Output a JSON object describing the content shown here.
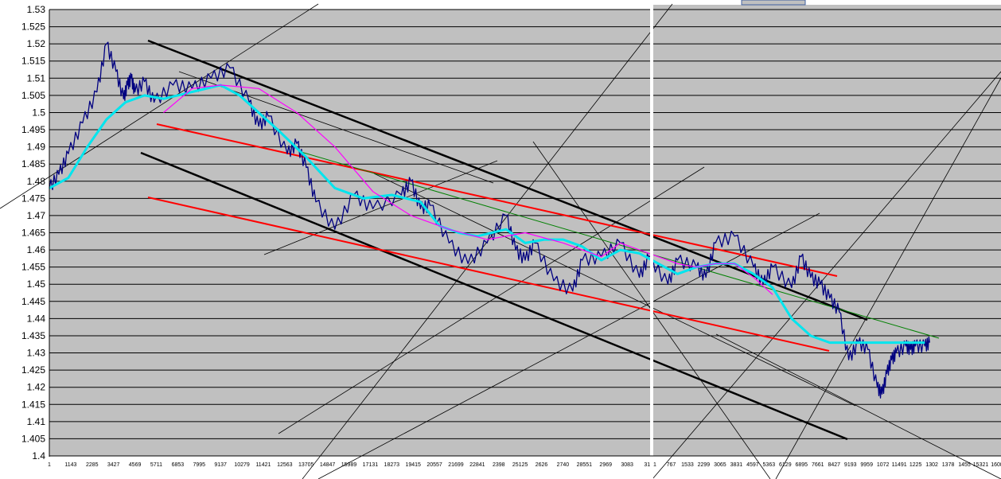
{
  "chart_data": {
    "type": "line",
    "title": "",
    "xlabel": "",
    "ylabel": "",
    "ylim": [
      1.4,
      1.53
    ],
    "y_ticks": [
      "1.4",
      "1.405",
      "1.41",
      "1.415",
      "1.42",
      "1.425",
      "1.43",
      "1.435",
      "1.44",
      "1.445",
      "1.45",
      "1.455",
      "1.46",
      "1.465",
      "1.47",
      "1.475",
      "1.48",
      "1.485",
      "1.49",
      "1.495",
      "1.5",
      "1.505",
      "1.51",
      "1.515",
      "1.52",
      "1.525",
      "1.53"
    ],
    "x_ticks_left": [
      "1",
      "1143",
      "2285",
      "3427",
      "4569",
      "5711",
      "6853",
      "7995",
      "9137",
      "10279",
      "11421",
      "12563",
      "13705",
      "14847",
      "15989",
      "17131",
      "18273",
      "19415",
      "20557",
      "21699",
      "22841",
      "2398",
      "25125",
      "2626",
      "2740",
      "28551",
      "2969",
      "3083",
      "311"
    ],
    "x_ticks_right": [
      "1",
      "767",
      "1533",
      "2299",
      "3065",
      "3831",
      "4597",
      "5363",
      "6129",
      "6895",
      "7661",
      "8427",
      "9193",
      "9959",
      "1072",
      "11491",
      "1225",
      "1302",
      "1378",
      "1455",
      "15321",
      "1608"
    ],
    "grid": true,
    "colors": {
      "plot_background": "#c0c0c0",
      "grid": "#000000",
      "price": "#000080",
      "moving_average_fast": "#00e5ee",
      "moving_average_slow": "#ff00ff",
      "channel_black": "#000000",
      "channel_red": "#ff0000",
      "trend_green": "#008000",
      "fan_lines": "#000000",
      "separator": "#ffffff"
    },
    "series": [
      {
        "key": "price",
        "x": [
          0,
          0.01,
          0.02,
          0.035,
          0.05,
          0.06,
          0.07,
          0.078,
          0.082,
          0.086,
          0.09,
          0.1,
          0.11,
          0.13,
          0.15,
          0.17,
          0.19,
          0.21,
          0.22,
          0.23,
          0.25,
          0.26,
          0.27,
          0.28,
          0.3,
          0.32,
          0.34,
          0.37,
          0.38,
          0.39,
          0.4,
          0.42,
          0.44,
          0.46,
          0.48,
          0.49,
          0.5,
          0.51,
          0.53,
          0.55,
          0.56,
          0.58,
          0.6,
          0.62,
          0.63,
          0.65,
          0.66,
          0.68,
          0.69,
          0.7,
          0.72,
          0.74,
          0.75,
          0.76,
          0.78,
          0.79,
          0.8,
          0.81,
          0.82,
          0.83,
          0.84,
          0.85,
          0.86,
          0.87,
          0.875,
          0.88,
          0.885,
          0.89,
          0.9,
          0.905,
          0.91,
          0.92,
          0.925
        ],
        "y": [
          1.478,
          1.482,
          1.488,
          1.497,
          1.506,
          1.52,
          1.512,
          1.504,
          1.508,
          1.51,
          1.506,
          1.509,
          1.503,
          1.508,
          1.507,
          1.51,
          1.513,
          1.503,
          1.496,
          1.499,
          1.488,
          1.491,
          1.484,
          1.474,
          1.466,
          1.476,
          1.472,
          1.476,
          1.48,
          1.472,
          1.473,
          1.462,
          1.456,
          1.462,
          1.47,
          1.46,
          1.457,
          1.462,
          1.451,
          1.448,
          1.457,
          1.458,
          1.462,
          1.452,
          1.458,
          1.45,
          1.457,
          1.455,
          1.452,
          1.462,
          1.464,
          1.455,
          1.45,
          1.455,
          1.449,
          1.458,
          1.452,
          1.45,
          1.446,
          1.442,
          1.428,
          1.433,
          1.431,
          1.42,
          1.418,
          1.424,
          1.428,
          1.43,
          1.432,
          1.431,
          1.432,
          1.432,
          1.433
        ]
      },
      {
        "key": "ma_fast",
        "x": [
          0,
          0.02,
          0.04,
          0.06,
          0.08,
          0.1,
          0.12,
          0.15,
          0.18,
          0.2,
          0.22,
          0.24,
          0.27,
          0.3,
          0.33,
          0.36,
          0.39,
          0.41,
          0.43,
          0.45,
          0.48,
          0.5,
          0.52,
          0.54,
          0.56,
          0.58,
          0.6,
          0.62,
          0.64,
          0.66,
          0.68,
          0.7,
          0.72,
          0.74,
          0.76,
          0.78,
          0.8,
          0.82,
          0.84,
          0.86,
          0.88,
          0.9,
          0.92
        ],
        "y": [
          1.478,
          1.481,
          1.49,
          1.498,
          1.503,
          1.505,
          1.504,
          1.506,
          1.508,
          1.505,
          1.5,
          1.495,
          1.487,
          1.478,
          1.475,
          1.476,
          1.474,
          1.467,
          1.465,
          1.464,
          1.466,
          1.462,
          1.463,
          1.463,
          1.461,
          1.457,
          1.46,
          1.459,
          1.456,
          1.453,
          1.455,
          1.456,
          1.456,
          1.453,
          1.449,
          1.44,
          1.435,
          1.433,
          1.433,
          1.433,
          1.433,
          1.433,
          1.433
        ]
      },
      {
        "key": "ma_slow",
        "x": [
          0.12,
          0.15,
          0.18,
          0.22,
          0.26,
          0.3,
          0.34,
          0.38,
          0.42,
          0.46,
          0.5,
          0.54,
          0.58,
          0.6,
          0.63,
          0.66,
          0.68,
          0.7,
          0.72,
          0.74,
          0.76
        ],
        "y": [
          1.5,
          1.507,
          1.508,
          1.507,
          1.5,
          1.49,
          1.477,
          1.47,
          1.466,
          1.463,
          1.465,
          1.462,
          1.458,
          1.462,
          1.459,
          1.456,
          1.455,
          1.456,
          1.456,
          1.452,
          1.447
        ]
      }
    ]
  }
}
